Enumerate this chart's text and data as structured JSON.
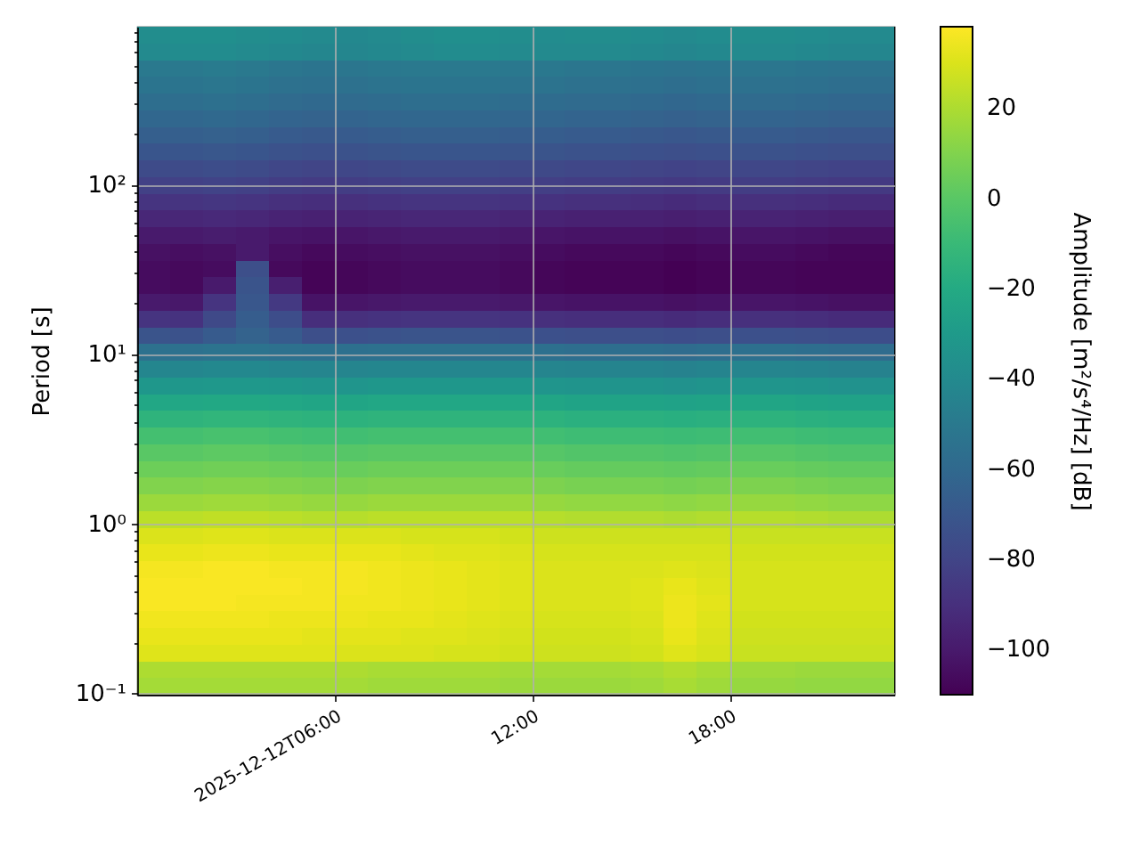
{
  "chart_data": {
    "type": "heatmap",
    "x": [
      "2025-12-12T00:30",
      "2025-12-12T01:30",
      "2025-12-12T02:30",
      "2025-12-12T03:30",
      "2025-12-12T04:30",
      "2025-12-12T05:30",
      "2025-12-12T06:30",
      "2025-12-12T07:30",
      "2025-12-12T08:30",
      "2025-12-12T09:30",
      "2025-12-12T10:30",
      "2025-12-12T11:30",
      "2025-12-12T12:30",
      "2025-12-12T13:30",
      "2025-12-12T14:30",
      "2025-12-12T15:30",
      "2025-12-12T16:30",
      "2025-12-12T17:30",
      "2025-12-12T18:30",
      "2025-12-12T19:30",
      "2025-12-12T20:30",
      "2025-12-12T21:30",
      "2025-12-12T22:30"
    ],
    "cells": [
      [
        -38,
        -37,
        -37,
        -38,
        -39,
        -40,
        -41,
        -40,
        -38,
        -37,
        -37,
        -38,
        -39,
        -38,
        -38,
        -39,
        -40,
        -39,
        -38,
        -38,
        -39,
        -40,
        -40
      ],
      [
        -40,
        -39,
        -39,
        -40,
        -41,
        -42,
        -42,
        -41,
        -40,
        -39,
        -39,
        -40,
        -40,
        -40,
        -40,
        -41,
        -42,
        -41,
        -40,
        -40,
        -41,
        -42,
        -42
      ],
      [
        -50,
        -50,
        -49,
        -50,
        -52,
        -53,
        -52,
        -51,
        -50,
        -50,
        -50,
        -51,
        -51,
        -52,
        -52,
        -53,
        -54,
        -53,
        -52,
        -52,
        -53,
        -54,
        -54
      ],
      [
        -53,
        -53,
        -52,
        -53,
        -55,
        -56,
        -55,
        -54,
        -53,
        -53,
        -53,
        -54,
        -54,
        -55,
        -55,
        -56,
        -57,
        -56,
        -55,
        -55,
        -56,
        -57,
        -57
      ],
      [
        -57,
        -57,
        -56,
        -57,
        -59,
        -60,
        -59,
        -58,
        -57,
        -57,
        -57,
        -58,
        -58,
        -59,
        -59,
        -60,
        -61,
        -60,
        -59,
        -59,
        -60,
        -61,
        -61
      ],
      [
        -61,
        -61,
        -60,
        -61,
        -63,
        -64,
        -63,
        -62,
        -61,
        -61,
        -61,
        -62,
        -62,
        -63,
        -63,
        -64,
        -65,
        -64,
        -63,
        -63,
        -64,
        -65,
        -65
      ],
      [
        -66,
        -66,
        -65,
        -66,
        -68,
        -69,
        -68,
        -67,
        -66,
        -66,
        -66,
        -67,
        -67,
        -68,
        -68,
        -69,
        -70,
        -69,
        -68,
        -68,
        -69,
        -70,
        -70
      ],
      [
        -71,
        -71,
        -70,
        -71,
        -73,
        -74,
        -73,
        -72,
        -71,
        -71,
        -71,
        -72,
        -72,
        -73,
        -73,
        -74,
        -75,
        -74,
        -73,
        -73,
        -74,
        -75,
        -75
      ],
      [
        -77,
        -77,
        -76,
        -77,
        -79,
        -80,
        -79,
        -78,
        -77,
        -77,
        -77,
        -78,
        -78,
        -79,
        -79,
        -80,
        -81,
        -80,
        -79,
        -79,
        -80,
        -81,
        -81
      ],
      [
        -82,
        -82,
        -81,
        -82,
        -84,
        -85,
        -84,
        -83,
        -82,
        -82,
        -82,
        -83,
        -83,
        -84,
        -84,
        -85,
        -86,
        -85,
        -84,
        -84,
        -85,
        -86,
        -86
      ],
      [
        -88,
        -88,
        -87,
        -88,
        -90,
        -91,
        -90,
        -89,
        -88,
        -88,
        -88,
        -89,
        -89,
        -90,
        -90,
        -91,
        -92,
        -91,
        -90,
        -90,
        -91,
        -92,
        -92
      ],
      [
        -94,
        -94,
        -93,
        -94,
        -96,
        -97,
        -96,
        -95,
        -94,
        -94,
        -94,
        -95,
        -96,
        -97,
        -97,
        -97,
        -98,
        -97,
        -96,
        -96,
        -97,
        -98,
        -98
      ],
      [
        -100,
        -100,
        -99,
        -100,
        -102,
        -103,
        -102,
        -101,
        -100,
        -100,
        -100,
        -101,
        -102,
        -103,
        -103,
        -103,
        -104,
        -103,
        -102,
        -102,
        -103,
        -104,
        -104
      ],
      [
        -104,
        -105,
        -104,
        -100,
        -105,
        -107,
        -106,
        -105,
        -104,
        -104,
        -104,
        -105,
        -106,
        -107,
        -107,
        -107,
        -108,
        -107,
        -106,
        -106,
        -107,
        -108,
        -108
      ],
      [
        -106,
        -107,
        -106,
        -75,
        -107,
        -109,
        -108,
        -107,
        -106,
        -106,
        -106,
        -107,
        -108,
        -109,
        -109,
        -109,
        -110,
        -109,
        -108,
        -108,
        -109,
        -109,
        -109
      ],
      [
        -106,
        -107,
        -100,
        -72,
        -98,
        -109,
        -108,
        -107,
        -106,
        -106,
        -106,
        -107,
        -108,
        -109,
        -109,
        -109,
        -110,
        -109,
        -108,
        -108,
        -109,
        -109,
        -109
      ],
      [
        -100,
        -101,
        -88,
        -70,
        -86,
        -103,
        -102,
        -101,
        -100,
        -100,
        -100,
        -101,
        -102,
        -103,
        -103,
        -103,
        -104,
        -103,
        -102,
        -102,
        -103,
        -104,
        -104
      ],
      [
        -88,
        -89,
        -78,
        -67,
        -76,
        -91,
        -90,
        -89,
        -88,
        -88,
        -88,
        -89,
        -90,
        -91,
        -91,
        -91,
        -92,
        -91,
        -90,
        -90,
        -91,
        -92,
        -92
      ],
      [
        -72,
        -73,
        -68,
        -64,
        -68,
        -75,
        -74,
        -73,
        -72,
        -72,
        -72,
        -73,
        -74,
        -75,
        -75,
        -75,
        -76,
        -75,
        -74,
        -74,
        -75,
        -76,
        -76
      ],
      [
        -55,
        -55,
        -54,
        -54,
        -55,
        -56,
        -56,
        -55,
        -55,
        -55,
        -55,
        -55,
        -56,
        -57,
        -57,
        -57,
        -58,
        -57,
        -56,
        -56,
        -57,
        -58,
        -58
      ],
      [
        -42,
        -42,
        -41,
        -41,
        -42,
        -43,
        -43,
        -42,
        -42,
        -42,
        -42,
        -42,
        -43,
        -44,
        -44,
        -44,
        -45,
        -44,
        -43,
        -43,
        -44,
        -45,
        -45
      ],
      [
        -32,
        -32,
        -31,
        -31,
        -32,
        -33,
        -33,
        -32,
        -32,
        -32,
        -32,
        -32,
        -33,
        -34,
        -34,
        -34,
        -35,
        -34,
        -33,
        -33,
        -34,
        -35,
        -35
      ],
      [
        -22,
        -22,
        -21,
        -21,
        -22,
        -23,
        -23,
        -22,
        -22,
        -22,
        -22,
        -22,
        -23,
        -24,
        -24,
        -24,
        -25,
        -24,
        -23,
        -23,
        -24,
        -25,
        -25
      ],
      [
        -14,
        -14,
        -13,
        -13,
        -14,
        -15,
        -15,
        -14,
        -14,
        -14,
        -14,
        -14,
        -15,
        -16,
        -16,
        -16,
        -17,
        -16,
        -15,
        -15,
        -16,
        -17,
        -17
      ],
      [
        -6,
        -6,
        -5,
        -5,
        -6,
        -7,
        -7,
        -6,
        -6,
        -6,
        -6,
        -6,
        -7,
        -8,
        -8,
        -8,
        -9,
        -8,
        -7,
        -7,
        -8,
        -9,
        -9
      ],
      [
        0,
        0,
        1,
        1,
        0,
        -1,
        -1,
        0,
        0,
        0,
        0,
        0,
        -1,
        -2,
        -2,
        -2,
        -3,
        -2,
        -1,
        -1,
        -2,
        -3,
        -3
      ],
      [
        5,
        5,
        6,
        6,
        5,
        4,
        4,
        5,
        5,
        5,
        5,
        5,
        4,
        3,
        3,
        3,
        2,
        3,
        4,
        4,
        3,
        2,
        2
      ],
      [
        10,
        10,
        11,
        11,
        10,
        9,
        9,
        10,
        10,
        10,
        10,
        10,
        9,
        8,
        8,
        8,
        7,
        8,
        9,
        9,
        8,
        7,
        7
      ],
      [
        16,
        16,
        17,
        17,
        16,
        15,
        15,
        16,
        16,
        16,
        16,
        16,
        15,
        14,
        14,
        14,
        13,
        14,
        15,
        15,
        14,
        13,
        13
      ],
      [
        23,
        23,
        24,
        24,
        23,
        22,
        22,
        23,
        23,
        23,
        23,
        23,
        22,
        21,
        21,
        21,
        20,
        21,
        22,
        22,
        21,
        20,
        20
      ],
      [
        30,
        30,
        31,
        31,
        30,
        30,
        30,
        30,
        29,
        29,
        29,
        28,
        27,
        27,
        27,
        27,
        27,
        27,
        26,
        26,
        26,
        26,
        26
      ],
      [
        33,
        33,
        34,
        34,
        33,
        33,
        33,
        33,
        32,
        31,
        31,
        30,
        29,
        29,
        29,
        29,
        29,
        29,
        28,
        28,
        28,
        28,
        28
      ],
      [
        36,
        36,
        37,
        37,
        36,
        36,
        36,
        35,
        34,
        33,
        32,
        31,
        30,
        30,
        30,
        30,
        31,
        30,
        29,
        29,
        29,
        29,
        29
      ],
      [
        37,
        37,
        37,
        37,
        37,
        36,
        36,
        35,
        34,
        33,
        32,
        31,
        30,
        30,
        30,
        31,
        33,
        31,
        29,
        29,
        29,
        29,
        29
      ],
      [
        37,
        37,
        37,
        36,
        36,
        36,
        35,
        35,
        34,
        33,
        32,
        31,
        30,
        30,
        30,
        31,
        34,
        32,
        29,
        29,
        29,
        29,
        29
      ],
      [
        35,
        35,
        35,
        35,
        34,
        34,
        34,
        33,
        33,
        32,
        31,
        30,
        29,
        29,
        29,
        30,
        34,
        31,
        28,
        28,
        28,
        28,
        28
      ],
      [
        33,
        33,
        33,
        33,
        33,
        32,
        32,
        32,
        31,
        31,
        30,
        29,
        28,
        28,
        28,
        29,
        33,
        30,
        27,
        27,
        27,
        27,
        27
      ],
      [
        31,
        31,
        31,
        31,
        31,
        31,
        30,
        30,
        30,
        29,
        29,
        28,
        27,
        27,
        27,
        28,
        31,
        29,
        26,
        26,
        26,
        26,
        26
      ],
      [
        20,
        20,
        20,
        20,
        20,
        20,
        20,
        19,
        19,
        19,
        19,
        18,
        18,
        18,
        18,
        19,
        21,
        19,
        17,
        17,
        16,
        16,
        16
      ],
      [
        18,
        18,
        18,
        18,
        18,
        18,
        18,
        17,
        17,
        17,
        17,
        16,
        16,
        16,
        16,
        17,
        19,
        17,
        15,
        15,
        14,
        14,
        14
      ]
    ],
    "xlim": [
      "2025-12-12T00:00",
      "2025-12-12T23:00"
    ],
    "xticks": [
      {
        "value": "2025-12-12T06:00",
        "label": "2025-12-12T06:00"
      },
      {
        "value": "2025-12-12T12:00",
        "label": "12:00"
      },
      {
        "value": "2025-12-12T18:00",
        "label": "18:00"
      }
    ],
    "ylim": [
      0.098,
      850
    ],
    "yticks": [
      {
        "value": 0.1,
        "label": "10⁻¹"
      },
      {
        "value": 0.2,
        "label": null
      },
      {
        "value": 0.3,
        "label": null
      },
      {
        "value": 0.4,
        "label": null
      },
      {
        "value": 0.5,
        "label": null
      },
      {
        "value": 0.6,
        "label": null
      },
      {
        "value": 0.7,
        "label": null
      },
      {
        "value": 0.8,
        "label": null
      },
      {
        "value": 0.9,
        "label": null
      },
      {
        "value": 1,
        "label": "10⁰"
      },
      {
        "value": 2,
        "label": null
      },
      {
        "value": 3,
        "label": null
      },
      {
        "value": 4,
        "label": null
      },
      {
        "value": 5,
        "label": null
      },
      {
        "value": 6,
        "label": null
      },
      {
        "value": 7,
        "label": null
      },
      {
        "value": 8,
        "label": null
      },
      {
        "value": 9,
        "label": null
      },
      {
        "value": 10,
        "label": "10¹"
      },
      {
        "value": 20,
        "label": null
      },
      {
        "value": 30,
        "label": null
      },
      {
        "value": 40,
        "label": null
      },
      {
        "value": 50,
        "label": null
      },
      {
        "value": 60,
        "label": null
      },
      {
        "value": 70,
        "label": null
      },
      {
        "value": 80,
        "label": null
      },
      {
        "value": 90,
        "label": null
      },
      {
        "value": 100,
        "label": "10²"
      },
      {
        "value": 200,
        "label": null
      },
      {
        "value": 300,
        "label": null
      },
      {
        "value": 400,
        "label": null
      },
      {
        "value": 500,
        "label": null
      },
      {
        "value": 600,
        "label": null
      },
      {
        "value": 700,
        "label": null
      },
      {
        "value": 800,
        "label": null
      }
    ],
    "log": "y",
    "grid": true,
    "ylabel": "Period [s]",
    "clabel": "Amplitude [m²/s⁴/Hz] [dB]",
    "clim": [
      -110,
      38
    ],
    "cticks": [
      {
        "value": -100,
        "label": "−100"
      },
      {
        "value": -80,
        "label": "−80"
      },
      {
        "value": -60,
        "label": "−60"
      },
      {
        "value": -40,
        "label": "−40"
      },
      {
        "value": -20,
        "label": "−20"
      },
      {
        "value": 0,
        "label": "0"
      },
      {
        "value": 20,
        "label": "20"
      }
    ]
  }
}
